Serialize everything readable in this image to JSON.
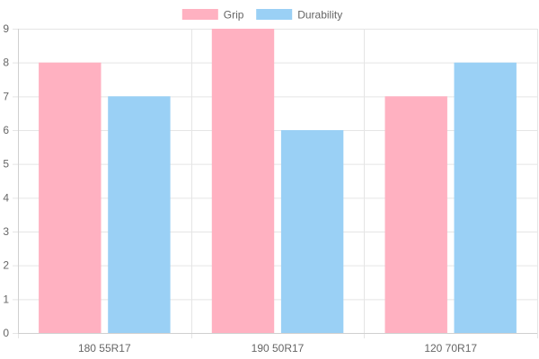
{
  "chart_data": {
    "type": "bar",
    "categories": [
      "180 55R17",
      "190 50R17",
      "120 70R17"
    ],
    "series": [
      {
        "name": "Grip",
        "values": [
          8,
          9,
          7
        ],
        "color": "#ffb1c1",
        "border": "#ff6384"
      },
      {
        "name": "Durability",
        "values": [
          7,
          6,
          8
        ],
        "color": "#9ad0f5",
        "border": "#36a2eb"
      }
    ],
    "title": "",
    "xlabel": "",
    "ylabel": "",
    "ylim": [
      0,
      9
    ],
    "yticks": [
      "0",
      "1",
      "2",
      "3",
      "4",
      "5",
      "6",
      "7",
      "8",
      "9"
    ],
    "grid": true,
    "legend_position": "top"
  }
}
